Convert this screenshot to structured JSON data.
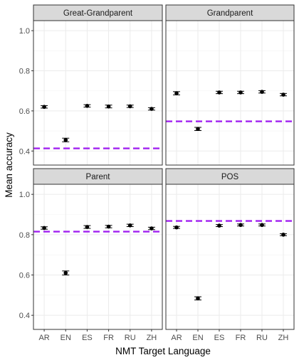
{
  "chart_data": {
    "type": "scatter",
    "x_label": "NMT Target Language",
    "y_label": "Mean accuracy",
    "categories": [
      "AR",
      "EN",
      "ES",
      "FR",
      "RU",
      "ZH"
    ],
    "y_ticks": [
      0.4,
      0.6,
      0.8,
      1.0
    ],
    "y_tick_labels": [
      "0.4",
      "0.6",
      "0.8",
      "1.0"
    ],
    "ylim": [
      0.33,
      1.05
    ],
    "grid": true,
    "colors": {
      "point": "#000000",
      "baseline": "#a020f0",
      "strip": "#d9d9d9",
      "grid": "#ebebeb",
      "border": "#333333"
    },
    "panels": [
      {
        "title": "Great-Grandparent",
        "values": [
          0.62,
          0.455,
          0.625,
          0.622,
          0.623,
          0.61
        ],
        "errors": [
          0.006,
          0.009,
          0.006,
          0.007,
          0.006,
          0.006
        ],
        "baseline": 0.413
      },
      {
        "title": "Grandparent",
        "values": [
          0.688,
          0.51,
          0.692,
          0.692,
          0.695,
          0.681
        ],
        "errors": [
          0.008,
          0.008,
          0.006,
          0.006,
          0.006,
          0.006
        ],
        "baseline": 0.548
      },
      {
        "title": "Parent",
        "values": [
          0.833,
          0.61,
          0.838,
          0.84,
          0.846,
          0.831
        ],
        "errors": [
          0.006,
          0.01,
          0.007,
          0.006,
          0.006,
          0.006
        ],
        "baseline": 0.815
      },
      {
        "title": "POS",
        "values": [
          0.836,
          0.484,
          0.845,
          0.848,
          0.848,
          0.8
        ],
        "errors": [
          0.005,
          0.008,
          0.005,
          0.005,
          0.005,
          0.005
        ],
        "baseline": 0.868
      }
    ]
  }
}
